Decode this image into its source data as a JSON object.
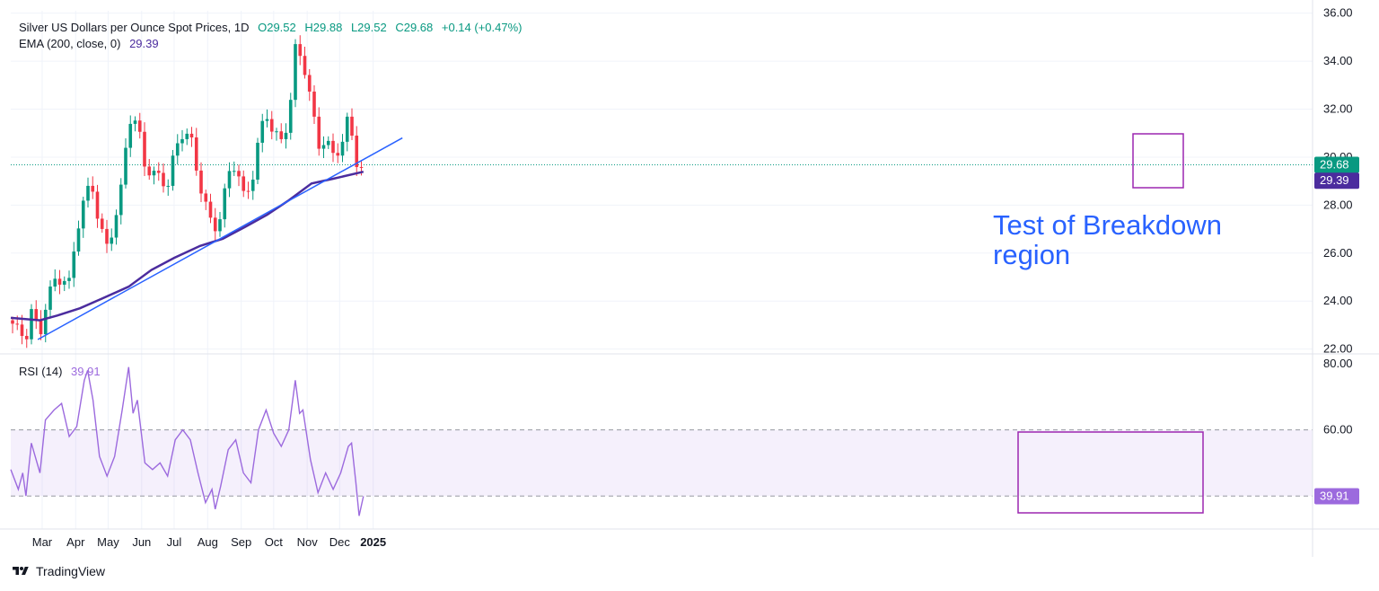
{
  "header": {
    "title": "Silver US Dollars per Ounce Spot Prices, 1D",
    "open": "O29.52",
    "high": "H29.88",
    "low": "L29.52",
    "close": "C29.68",
    "change": "+0.14 (+0.47%)"
  },
  "ema_legend": {
    "label": "EMA (200, close, 0)",
    "value": "29.39"
  },
  "rsi_legend": {
    "label": "RSI (14)",
    "value": "39.91"
  },
  "annotation": {
    "line1": "Test of Breakdown",
    "line2": "region"
  },
  "footer": {
    "brand": "TradingView"
  },
  "colors": {
    "up": "#089981",
    "down": "#f23645",
    "ema": "#4b2c9e",
    "trend": "#2962ff",
    "rsi": "#9c6ade",
    "box": "#9c27b0"
  },
  "chart_data": {
    "type": "candlestick",
    "x_labels": [
      "Mar",
      "Apr",
      "May",
      "Jun",
      "Jul",
      "Aug",
      "Sep",
      "Oct",
      "Nov",
      "Dec",
      "2025"
    ],
    "price_axis": {
      "ticks": [
        "22.00",
        "24.00",
        "26.00",
        "28.00",
        "30.00",
        "32.00",
        "34.00",
        "36.00"
      ],
      "range": [
        21.8,
        36.1
      ]
    },
    "rsi_axis": {
      "ticks": [
        "60.00",
        "80.00"
      ],
      "range": [
        30,
        83
      ],
      "band": [
        40,
        60
      ]
    },
    "last_price": "29.68",
    "ema_last": "29.39",
    "rsi_last": "39.91",
    "price_path": [
      [
        "2024-02-01",
        23.2
      ],
      [
        "2024-02-08",
        22.6
      ],
      [
        "2024-02-15",
        22.3
      ],
      [
        "2024-02-20",
        23.4
      ],
      [
        "2024-02-28",
        22.6
      ],
      [
        "2024-03-05",
        24.1
      ],
      [
        "2024-03-12",
        25.0
      ],
      [
        "2024-03-19",
        25.1
      ],
      [
        "2024-03-26",
        24.7
      ],
      [
        "2024-04-02",
        26.8
      ],
      [
        "2024-04-09",
        28.1
      ],
      [
        "2024-04-16",
        28.8
      ],
      [
        "2024-04-23",
        27.2
      ],
      [
        "2024-04-30",
        26.4
      ],
      [
        "2024-05-07",
        27.5
      ],
      [
        "2024-05-14",
        28.9
      ],
      [
        "2024-05-20",
        31.6
      ],
      [
        "2024-05-28",
        31.2
      ],
      [
        "2024-06-04",
        29.5
      ],
      [
        "2024-06-11",
        29.3
      ],
      [
        "2024-06-18",
        29.3
      ],
      [
        "2024-06-25",
        29.0
      ],
      [
        "2024-07-02",
        30.4
      ],
      [
        "2024-07-09",
        31.0
      ],
      [
        "2024-07-16",
        30.7
      ],
      [
        "2024-07-23",
        29.0
      ],
      [
        "2024-07-30",
        28.0
      ],
      [
        "2024-08-06",
        27.0
      ],
      [
        "2024-08-13",
        27.8
      ],
      [
        "2024-08-20",
        29.4
      ],
      [
        "2024-08-27",
        29.8
      ],
      [
        "2024-09-03",
        28.2
      ],
      [
        "2024-09-10",
        28.6
      ],
      [
        "2024-09-17",
        30.6
      ],
      [
        "2024-09-24",
        31.9
      ],
      [
        "2024-10-01",
        31.2
      ],
      [
        "2024-10-08",
        30.8
      ],
      [
        "2024-10-15",
        31.7
      ],
      [
        "2024-10-21",
        34.4
      ],
      [
        "2024-10-28",
        33.9
      ],
      [
        "2024-11-04",
        32.3
      ],
      [
        "2024-11-11",
        30.4
      ],
      [
        "2024-11-18",
        30.9
      ],
      [
        "2024-11-25",
        30.2
      ],
      [
        "2024-12-02",
        30.6
      ],
      [
        "2024-12-09",
        31.6
      ],
      [
        "2024-12-16",
        29.9
      ],
      [
        "2024-12-19",
        29.0
      ],
      [
        "2024-12-23",
        29.68
      ]
    ],
    "ema_path": [
      [
        "2024-02-01",
        23.3
      ],
      [
        "2024-02-28",
        23.2
      ],
      [
        "2024-03-15",
        23.4
      ],
      [
        "2024-04-05",
        23.7
      ],
      [
        "2024-04-25",
        24.1
      ],
      [
        "2024-05-20",
        24.6
      ],
      [
        "2024-06-10",
        25.3
      ],
      [
        "2024-07-01",
        25.8
      ],
      [
        "2024-07-25",
        26.3
      ],
      [
        "2024-08-15",
        26.6
      ],
      [
        "2024-09-05",
        27.1
      ],
      [
        "2024-09-25",
        27.6
      ],
      [
        "2024-10-15",
        28.2
      ],
      [
        "2024-11-05",
        28.9
      ],
      [
        "2024-11-25",
        29.1
      ],
      [
        "2024-12-23",
        29.39
      ]
    ],
    "trendline": {
      "from": [
        "2024-02-26",
        22.4
      ],
      "to": [
        "2025-01-28",
        30.8
      ]
    },
    "rsi_path": [
      [
        "2024-02-01",
        48
      ],
      [
        "2024-02-08",
        42
      ],
      [
        "2024-02-12",
        47
      ],
      [
        "2024-02-15",
        40
      ],
      [
        "2024-02-20",
        56
      ],
      [
        "2024-02-28",
        47
      ],
      [
        "2024-03-04",
        63
      ],
      [
        "2024-03-12",
        66
      ],
      [
        "2024-03-19",
        68
      ],
      [
        "2024-03-26",
        58
      ],
      [
        "2024-04-02",
        61
      ],
      [
        "2024-04-09",
        75
      ],
      [
        "2024-04-12",
        78
      ],
      [
        "2024-04-17",
        69
      ],
      [
        "2024-04-23",
        52
      ],
      [
        "2024-04-30",
        46
      ],
      [
        "2024-05-07",
        52
      ],
      [
        "2024-05-14",
        66
      ],
      [
        "2024-05-20",
        79
      ],
      [
        "2024-05-24",
        65
      ],
      [
        "2024-05-28",
        69
      ],
      [
        "2024-06-04",
        50
      ],
      [
        "2024-06-11",
        48
      ],
      [
        "2024-06-18",
        50
      ],
      [
        "2024-06-25",
        46
      ],
      [
        "2024-07-02",
        57
      ],
      [
        "2024-07-09",
        60
      ],
      [
        "2024-07-16",
        57
      ],
      [
        "2024-07-23",
        47
      ],
      [
        "2024-07-30",
        38
      ],
      [
        "2024-08-05",
        42
      ],
      [
        "2024-08-08",
        36
      ],
      [
        "2024-08-13",
        43
      ],
      [
        "2024-08-20",
        54
      ],
      [
        "2024-08-27",
        57
      ],
      [
        "2024-09-03",
        47
      ],
      [
        "2024-09-10",
        44
      ],
      [
        "2024-09-17",
        60
      ],
      [
        "2024-09-24",
        66
      ],
      [
        "2024-10-01",
        59
      ],
      [
        "2024-10-08",
        55
      ],
      [
        "2024-10-15",
        60
      ],
      [
        "2024-10-21",
        75
      ],
      [
        "2024-10-25",
        65
      ],
      [
        "2024-10-28",
        66
      ],
      [
        "2024-11-04",
        51
      ],
      [
        "2024-11-11",
        41
      ],
      [
        "2024-11-18",
        47
      ],
      [
        "2024-11-25",
        42
      ],
      [
        "2024-12-02",
        47
      ],
      [
        "2024-12-09",
        55
      ],
      [
        "2024-12-12",
        56
      ],
      [
        "2024-12-16",
        44
      ],
      [
        "2024-12-19",
        34
      ],
      [
        "2024-12-23",
        39.91
      ]
    ]
  }
}
